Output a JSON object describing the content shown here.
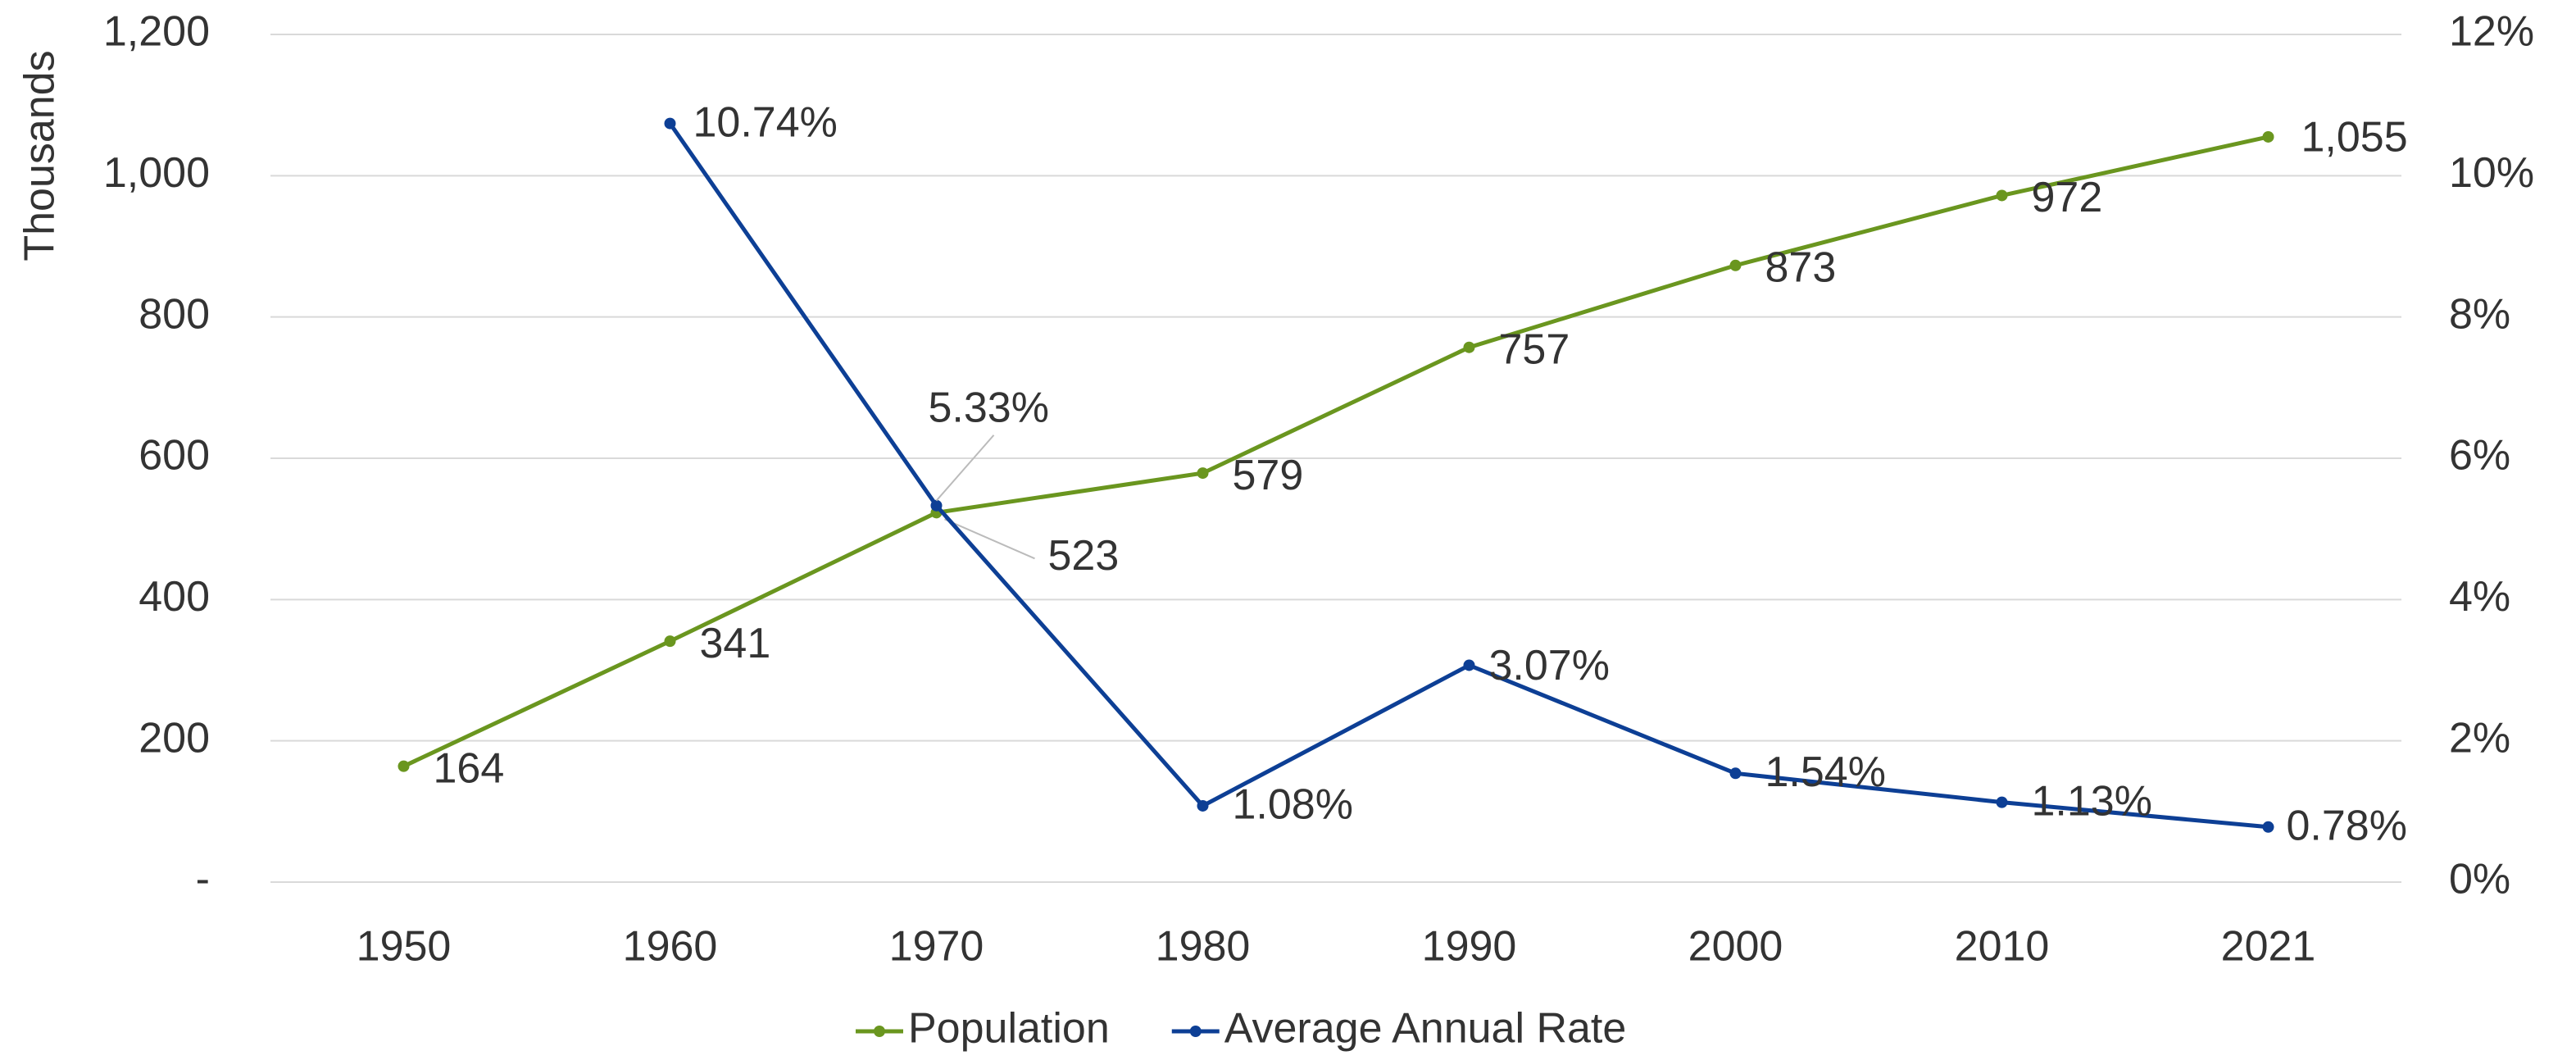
{
  "chart_data": {
    "type": "line",
    "y_label": "Thousands",
    "categories": [
      "1950",
      "1960",
      "1970",
      "1980",
      "1990",
      "2000",
      "2010",
      "2021"
    ],
    "series": [
      {
        "name": "Population",
        "color": "#6a961f",
        "values": [
          164,
          341,
          523,
          579,
          757,
          873,
          972,
          1055
        ],
        "value_labels": [
          "164",
          "341",
          "523",
          "579",
          "757",
          "873",
          "972",
          "1,055"
        ]
      },
      {
        "name": "Average Annual Rate",
        "color": "#0d3f95",
        "axis": "y2",
        "values": [
          null,
          10.74,
          5.33,
          1.08,
          3.07,
          1.54,
          1.13,
          0.78
        ],
        "value_labels": [
          null,
          "10.74%",
          "5.33%",
          "1.08%",
          "3.07%",
          "1.54%",
          "1.13%",
          "0.78%"
        ]
      }
    ],
    "ylim": [
      0,
      1200
    ],
    "yticks": [
      {
        "value": 0,
        "label": "-"
      },
      200,
      400,
      600,
      800,
      {
        "value": 1000,
        "label": "1,000"
      },
      {
        "value": 1200,
        "label": "1,200"
      }
    ],
    "y2lim": [
      0,
      12
    ],
    "y2ticks": [
      {
        "value": 0,
        "label": "0%"
      },
      {
        "value": 2,
        "label": "2%"
      },
      {
        "value": 4,
        "label": "4%"
      },
      {
        "value": 6,
        "label": "6%"
      },
      {
        "value": 8,
        "label": "8%"
      },
      {
        "value": 10,
        "label": "10%"
      },
      {
        "value": 12,
        "label": "12%"
      }
    ],
    "grid": true,
    "legend": "bottom"
  }
}
